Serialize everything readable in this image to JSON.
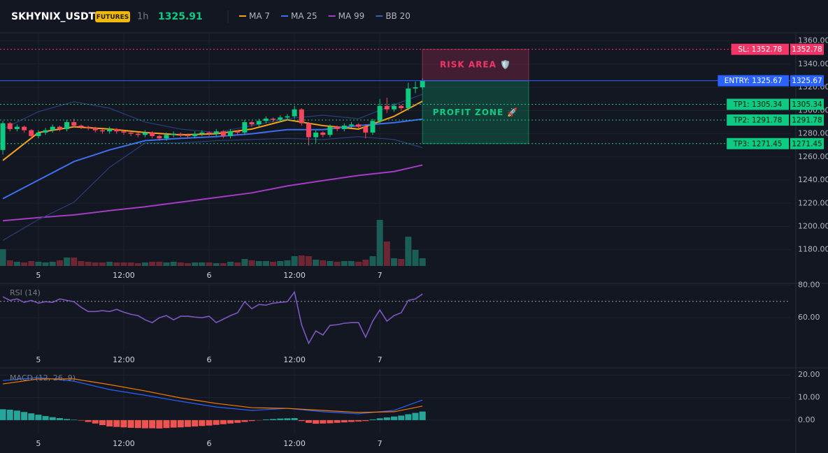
{
  "chart_data": [
    {
      "type": "candlestick",
      "title": "SKHYNIX_USDT",
      "badge": "FUTURES",
      "interval": "1h",
      "last_price": 1325.91,
      "xlim": [
        -0.4,
        110.7
      ],
      "xticks": [
        {
          "value": 5,
          "label": "5"
        },
        {
          "value": 17,
          "label": "12:00"
        },
        {
          "value": 29,
          "label": "6"
        },
        {
          "value": 41,
          "label": "12:00"
        },
        {
          "value": 53,
          "label": "7"
        }
      ],
      "ylim": [
        1166,
        1367
      ],
      "yticks": [
        {
          "value": 1360,
          "label": "1360.00"
        },
        {
          "value": 1340,
          "label": "1340.00"
        },
        {
          "value": 1320,
          "label": "1320.00"
        },
        {
          "value": 1300,
          "label": "1300.00"
        },
        {
          "value": 1280,
          "label": "1280.00"
        },
        {
          "value": 1260,
          "label": "1260.00"
        },
        {
          "value": 1240,
          "label": "1240.00"
        },
        {
          "value": 1220,
          "label": "1220.00"
        },
        {
          "value": 1200,
          "label": "1200.00"
        },
        {
          "value": 1180,
          "label": "1180.00"
        }
      ],
      "grid": true,
      "up_color": "#0ecb81",
      "down_color": "#f6465d",
      "volume_up_color": "#1b5e56",
      "volume_down_color": "#6e2634",
      "open": [
        1266,
        1289,
        1284,
        1286,
        1283,
        1278,
        1281,
        1283,
        1286,
        1284,
        1290,
        1287,
        1286,
        1285,
        1283,
        1282,
        1284,
        1282,
        1281,
        1280,
        1279,
        1281,
        1278,
        1276,
        1279,
        1280,
        1279,
        1278,
        1280,
        1281,
        1280,
        1282,
        1278,
        1282,
        1281,
        1290,
        1288,
        1291,
        1293,
        1292,
        1294,
        1295,
        1301,
        1289,
        1277,
        1281,
        1279,
        1286,
        1284,
        1287,
        1288,
        1286,
        1281,
        1291,
        1304,
        1301,
        1304,
        1302,
        1319,
        1320
      ],
      "high": [
        1291,
        1290,
        1288,
        1287,
        1284,
        1283,
        1285,
        1288,
        1287,
        1292,
        1293,
        1288,
        1287,
        1286,
        1284,
        1286,
        1285,
        1283,
        1282,
        1281,
        1283,
        1282,
        1279,
        1281,
        1282,
        1281,
        1280,
        1282,
        1283,
        1282,
        1284,
        1283,
        1284,
        1283,
        1292,
        1291,
        1293,
        1295,
        1294,
        1296,
        1297,
        1304,
        1302,
        1290,
        1283,
        1282,
        1288,
        1287,
        1289,
        1290,
        1289,
        1288,
        1293,
        1310,
        1311,
        1306,
        1305,
        1324,
        1325,
        1328
      ],
      "low": [
        1262,
        1282,
        1282,
        1281,
        1276,
        1276,
        1279,
        1281,
        1282,
        1282,
        1285,
        1284,
        1283,
        1281,
        1280,
        1280,
        1280,
        1279,
        1278,
        1277,
        1277,
        1276,
        1274,
        1274,
        1277,
        1277,
        1276,
        1276,
        1278,
        1278,
        1278,
        1276,
        1276,
        1279,
        1279,
        1286,
        1286,
        1289,
        1290,
        1290,
        1292,
        1293,
        1287,
        1270,
        1272,
        1277,
        1277,
        1282,
        1282,
        1285,
        1284,
        1276,
        1279,
        1289,
        1298,
        1299,
        1300,
        1300,
        1315,
        1318
      ],
      "close": [
        1289,
        1284,
        1286,
        1283,
        1278,
        1281,
        1283,
        1286,
        1284,
        1290,
        1287,
        1286,
        1285,
        1283,
        1282,
        1284,
        1282,
        1281,
        1280,
        1279,
        1281,
        1278,
        1276,
        1279,
        1280,
        1279,
        1278,
        1280,
        1281,
        1280,
        1282,
        1278,
        1282,
        1281,
        1290,
        1288,
        1291,
        1293,
        1292,
        1294,
        1295,
        1301,
        1289,
        1277,
        1281,
        1279,
        1286,
        1284,
        1287,
        1288,
        1286,
        1281,
        1291,
        1304,
        1301,
        1304,
        1302,
        1319,
        1320,
        1325.91
      ],
      "volume": [
        24,
        8,
        6,
        5,
        7,
        6,
        5,
        6,
        8,
        12,
        12,
        7,
        6,
        5,
        5,
        6,
        5,
        5,
        5,
        4,
        5,
        6,
        6,
        5,
        6,
        5,
        4,
        5,
        5,
        5,
        4,
        4,
        6,
        5,
        10,
        8,
        7,
        7,
        6,
        7,
        8,
        14,
        15,
        14,
        9,
        8,
        7,
        6,
        7,
        7,
        6,
        9,
        14,
        66,
        35,
        11,
        10,
        42,
        23,
        11
      ],
      "series": [
        {
          "name": "MA 7",
          "color": "#f7a21b",
          "x": [
            0,
            5,
            10,
            15,
            20,
            25,
            30,
            35,
            40,
            45,
            50,
            55,
            59
          ],
          "values": [
            1257,
            1281,
            1286,
            1284,
            1281,
            1279,
            1280,
            1284,
            1292,
            1287,
            1284,
            1295,
            1308
          ]
        },
        {
          "name": "MA 25",
          "color": "#3d6ff0",
          "x": [
            0,
            5,
            10,
            15,
            20,
            25,
            30,
            35,
            40,
            45,
            50,
            55,
            59
          ],
          "values": [
            1224,
            1240,
            1256,
            1266,
            1274,
            1276,
            1277.5,
            1280,
            1283.5,
            1283.5,
            1287,
            1289.5,
            1292.6
          ]
        },
        {
          "name": "MA 99",
          "color": "#a43cc4",
          "x": [
            0,
            5,
            10,
            15,
            20,
            25,
            30,
            35,
            40,
            45,
            50,
            55,
            59
          ],
          "values": [
            1205,
            1207.7,
            1210,
            1213.7,
            1217,
            1221,
            1225,
            1229,
            1235,
            1239.6,
            1244,
            1247.4,
            1253
          ]
        },
        {
          "name": "BB 20",
          "color": "#2a3f78",
          "x": [
            0,
            5,
            10,
            15,
            20,
            25,
            30,
            35,
            40,
            45,
            50,
            55,
            59
          ],
          "upper": [
            1284,
            1299,
            1307.6,
            1302,
            1290,
            1284,
            1281,
            1287,
            1293,
            1296,
            1293,
            1305,
            1314
          ],
          "lower": [
            1188,
            1206,
            1221,
            1251,
            1272,
            1272,
            1274,
            1275,
            1276,
            1275,
            1277.5,
            1275,
            1268
          ]
        }
      ],
      "levels": [
        {
          "label": "SL: 1352.78",
          "value": 1352.78,
          "color": "#f23668"
        },
        {
          "label": "ENTRY: 1325.67",
          "value": 1325.67,
          "color": "#2962ff"
        },
        {
          "label": "TP1: 1305.34",
          "value": 1305.34,
          "color": "#0ecb81"
        },
        {
          "label": "TP2: 1291.78",
          "value": 1291.78,
          "color": "#0ecb81"
        },
        {
          "label": "TP3: 1271.45",
          "value": 1271.45,
          "color": "#0ecb81"
        }
      ],
      "zones": [
        {
          "label": "RISK AREA 🛡️",
          "color": "#f23668"
        },
        {
          "label": "PROFIT ZONE 🚀",
          "color": "#0ecb81"
        }
      ]
    },
    {
      "type": "line",
      "title": "RSI (14)",
      "color": "#7e57c2",
      "xlim": [
        -0.4,
        110.7
      ],
      "xticks": [
        {
          "value": 5,
          "label": "5"
        },
        {
          "value": 17,
          "label": "12:00"
        },
        {
          "value": 29,
          "label": "6"
        },
        {
          "value": 41,
          "label": "12:00"
        },
        {
          "value": 53,
          "label": "7"
        }
      ],
      "ylim": [
        40,
        81
      ],
      "yticks": [
        {
          "value": 80,
          "label": "80.00"
        },
        {
          "value": 60,
          "label": "60.00"
        }
      ],
      "reference_line": 70,
      "grid": true,
      "values": [
        72.8,
        70.6,
        71.5,
        69.4,
        70.6,
        68.9,
        69.8,
        69.4,
        71.5,
        70.6,
        69.8,
        66.4,
        63.8,
        63.8,
        64.3,
        63.8,
        65.1,
        63.4,
        62.1,
        61.3,
        58.7,
        57.0,
        60.0,
        61.3,
        58.7,
        60.9,
        60.9,
        60.4,
        60.0,
        60.9,
        57.0,
        59.1,
        61.3,
        63.0,
        69.8,
        65.5,
        68.1,
        67.7,
        68.9,
        69.4,
        69.8,
        75.7,
        55.7,
        44.3,
        51.9,
        49.4,
        55.3,
        55.7,
        56.6,
        57.0,
        57.0,
        48.1,
        57.9,
        64.7,
        57.9,
        61.3,
        63.0,
        70.6,
        71.5,
        74.5
      ]
    },
    {
      "type": "macd",
      "title": "MACD (12, 26, 9)",
      "xlim": [
        -0.4,
        110.7
      ],
      "xticks": [
        {
          "value": 5,
          "label": "5"
        },
        {
          "value": 17,
          "label": "12:00"
        },
        {
          "value": 29,
          "label": "6"
        },
        {
          "value": 41,
          "label": "12:00"
        },
        {
          "value": 53,
          "label": "7"
        }
      ],
      "ylim": [
        -6.2,
        22.8
      ],
      "yticks": [
        {
          "value": 20,
          "label": "20.00"
        },
        {
          "value": 10,
          "label": "10.00"
        },
        {
          "value": 0,
          "label": "0.00"
        }
      ],
      "grid": true,
      "histogram_up_color": "#26a69a",
      "histogram_down_color": "#ef5350",
      "histogram": [
        4.8,
        4.6,
        4.2,
        3.6,
        3.0,
        2.4,
        1.8,
        1.3,
        0.9,
        0.5,
        0.2,
        -0.2,
        -0.8,
        -1.5,
        -2.2,
        -2.8,
        -3.0,
        -3.2,
        -3.4,
        -3.5,
        -3.6,
        -3.6,
        -3.7,
        -3.5,
        -3.3,
        -3.2,
        -3.0,
        -2.8,
        -2.6,
        -2.4,
        -2.1,
        -1.8,
        -1.5,
        -1.2,
        -0.8,
        -0.4,
        -0.1,
        0.3,
        0.5,
        0.7,
        0.8,
        0.9,
        -0.4,
        -1.2,
        -1.6,
        -1.5,
        -1.4,
        -1.2,
        -1.0,
        -0.8,
        -0.6,
        -0.4,
        0.3,
        0.8,
        1.2,
        1.6,
        2.0,
        2.6,
        3.2,
        3.8
      ],
      "series": [
        {
          "color": "#2962ff",
          "x": [
            0,
            5,
            10,
            15,
            20,
            25,
            30,
            35,
            40,
            45,
            50,
            55,
            59
          ],
          "values": [
            17.5,
            18.8,
            17.2,
            13.5,
            11,
            8.3,
            5.8,
            4.3,
            5.2,
            3.7,
            2.8,
            4.3,
            8.9
          ]
        },
        {
          "color": "#f57c00",
          "x": [
            0,
            5,
            10,
            15,
            20,
            25,
            30,
            35,
            40,
            45,
            50,
            55,
            59
          ],
          "values": [
            16,
            18.2,
            18.2,
            15.7,
            12.9,
            9.8,
            7.4,
            5.5,
            5.2,
            4.3,
            3.4,
            3.7,
            6.2
          ]
        }
      ]
    }
  ]
}
